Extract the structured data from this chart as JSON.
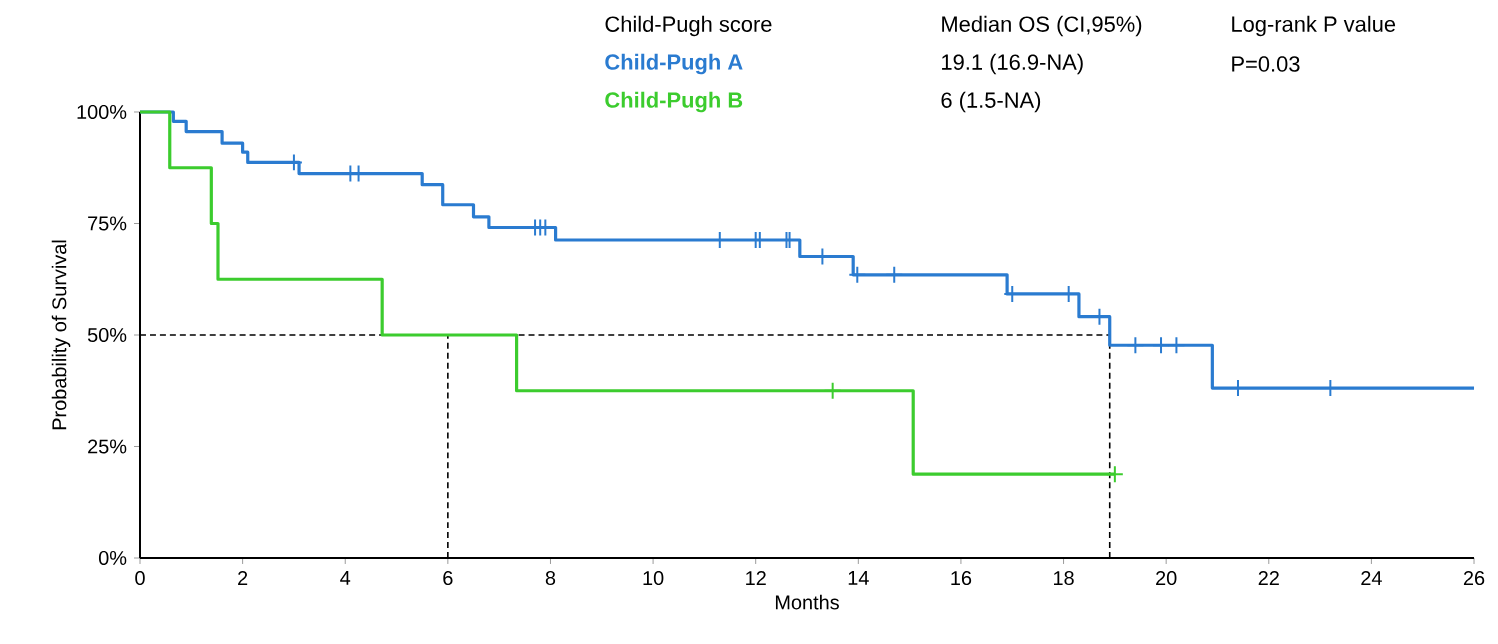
{
  "chart_data": {
    "type": "step",
    "xlabel": "Months",
    "ylabel": "Probability of Survival",
    "xlim": [
      0,
      26
    ],
    "xticks": [
      0,
      2,
      4,
      6,
      8,
      10,
      12,
      14,
      16,
      18,
      20,
      22,
      24,
      26
    ],
    "ylim": [
      0,
      100
    ],
    "yticks": [
      {
        "value": 0,
        "label": "0%"
      },
      {
        "value": 25,
        "label": "25%"
      },
      {
        "value": 50,
        "label": "50%"
      },
      {
        "value": 75,
        "label": "75%"
      },
      {
        "value": 100,
        "label": "100%"
      }
    ],
    "series": [
      {
        "name": "Child-Pugh A",
        "color": "#2a7bd0",
        "x": [
          0,
          0.65,
          0.9,
          1.6,
          2.0,
          2.1,
          3.1,
          5.5,
          5.9,
          6.5,
          6.8,
          8.1,
          12.86,
          13.9,
          16.9,
          18.3,
          18.9,
          20.9,
          26
        ],
        "values": [
          100,
          97.9,
          95.6,
          93.0,
          91.0,
          88.7,
          86.2,
          83.7,
          79.2,
          76.5,
          74.1,
          71.3,
          67.6,
          63.5,
          59.2,
          54.1,
          47.7,
          38.1,
          38.1
        ]
      },
      {
        "name": "Child-Pugh B",
        "color": "#3ccc2e",
        "x": [
          0,
          0.58,
          1.39,
          1.52,
          4.72,
          7.34,
          15.07,
          19.0
        ],
        "values": [
          100,
          87.5,
          75,
          62.5,
          50,
          37.5,
          18.8,
          18.8
        ]
      },
      {
        "type": "scatter",
        "marker": "cross",
        "color": "#2a7bd0",
        "x": [
          3.0,
          4.1,
          4.26,
          7.7,
          7.8,
          7.9,
          11.3,
          12.0,
          12.08,
          12.6,
          12.66,
          13.3,
          13.98,
          14.7,
          17.0,
          18.1,
          18.7,
          19.4,
          19.9,
          20.2,
          21.4,
          23.2
        ],
        "values": [
          88.7,
          86.2,
          86.2,
          74.1,
          74.1,
          74.1,
          71.3,
          71.3,
          71.3,
          71.3,
          71.3,
          67.6,
          63.5,
          63.5,
          59.2,
          59.2,
          54.1,
          47.7,
          47.7,
          47.7,
          38.1,
          38.1
        ]
      },
      {
        "type": "scatter",
        "marker": "cross",
        "color": "#3ccc2e",
        "x": [
          13.5,
          19.0
        ],
        "values": [
          37.5,
          18.8
        ]
      }
    ],
    "ref_lines": [
      {
        "axis": "y",
        "value": 50,
        "line_style": "dashed",
        "color": "#000000"
      },
      {
        "axis": "x",
        "value": 6,
        "line_style": "dashed",
        "color": "#000000"
      },
      {
        "axis": "x",
        "value": 18.9,
        "line_style": "dashed",
        "color": "#000000"
      }
    ],
    "annotations": [
      "Child-Pugh score",
      "Median OS (CI,95%)",
      "Log-rank P value",
      "19.1 (16.9-NA)",
      "P=0.03",
      "6 (1.5-NA)"
    ]
  }
}
